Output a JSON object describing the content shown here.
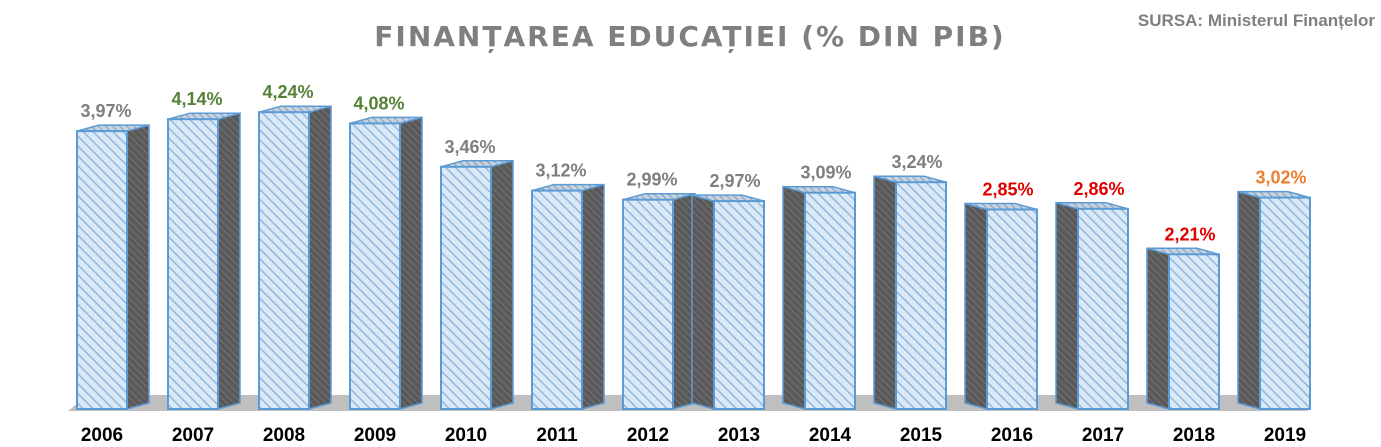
{
  "header": {
    "title": "FINANȚAREA EDUCAȚIEI (% DIN PIB)",
    "source": "SURSA: Ministerul Finanțelor"
  },
  "colors": {
    "bar_face": "#dbe8f6",
    "bar_hatch": "#8fb8e0",
    "bar_outline": "#5b9bd5",
    "bar_side": "#595959",
    "floor": "#bfbfbf",
    "label_gray": "#7f7f7f",
    "label_green": "#548235",
    "label_red": "#e00000",
    "label_orange": "#ed7d31"
  },
  "chart_data": {
    "type": "bar",
    "title": "FINANȚAREA EDUCAȚIEI (% DIN PIB)",
    "xlabel": "",
    "ylabel": "",
    "ylim": [
      0,
      4.5
    ],
    "grid": false,
    "categories": [
      "2006",
      "2007",
      "2008",
      "2009",
      "2010",
      "2011",
      "2012",
      "2013",
      "2014",
      "2015",
      "2016",
      "2017",
      "2018",
      "2019"
    ],
    "values": [
      3.97,
      4.14,
      4.24,
      4.08,
      3.46,
      3.12,
      2.99,
      2.97,
      3.09,
      3.24,
      2.85,
      2.86,
      2.21,
      3.02
    ],
    "labels": [
      "3,97%",
      "4,14%",
      "4,24%",
      "4,08%",
      "3,46%",
      "3,12%",
      "2,99%",
      "2,97%",
      "3,09%",
      "3,24%",
      "2,85%",
      "2,86%",
      "2,21%",
      "3,02%"
    ],
    "label_colors": [
      "gray",
      "green",
      "green",
      "green",
      "gray",
      "gray",
      "gray",
      "gray",
      "gray",
      "gray",
      "red",
      "red",
      "red",
      "orange"
    ]
  }
}
